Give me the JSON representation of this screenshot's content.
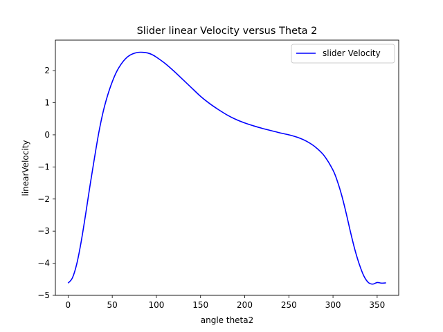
{
  "chart_data": {
    "type": "line",
    "title": "Slider linear Velocity versus Theta 2",
    "xlabel": "angle theta2",
    "ylabel": "linearVelocity",
    "xlim": [
      -14.4,
      374.4
    ],
    "ylim": [
      -5.0,
      2.95
    ],
    "xticks": [
      0,
      50,
      100,
      150,
      200,
      250,
      300,
      350
    ],
    "xtick_labels": [
      "0",
      "50",
      "100",
      "150",
      "200",
      "250",
      "300",
      "350"
    ],
    "yticks": [
      -5,
      -4,
      -3,
      -2,
      -1,
      0,
      1,
      2
    ],
    "ytick_labels": [
      "−5",
      "−4",
      "−3",
      "−2",
      "−1",
      "0",
      "1",
      "2"
    ],
    "grid": false,
    "legend_position": "top-right",
    "series": [
      {
        "name": "slider Velocity",
        "color": "#0000ff",
        "x": [
          0,
          5,
          10,
          15,
          20,
          25,
          30,
          35,
          40,
          45,
          50,
          55,
          60,
          65,
          70,
          75,
          80,
          85,
          90,
          95,
          100,
          110,
          120,
          130,
          140,
          150,
          160,
          170,
          180,
          190,
          200,
          210,
          220,
          230,
          240,
          250,
          260,
          270,
          280,
          290,
          300,
          305,
          310,
          315,
          320,
          325,
          330,
          335,
          340,
          345,
          350,
          355,
          360
        ],
        "y": [
          -4.62,
          -4.45,
          -4.0,
          -3.3,
          -2.45,
          -1.55,
          -0.7,
          0.1,
          0.75,
          1.25,
          1.65,
          1.97,
          2.2,
          2.37,
          2.48,
          2.54,
          2.57,
          2.57,
          2.55,
          2.5,
          2.42,
          2.22,
          1.98,
          1.72,
          1.46,
          1.2,
          0.98,
          0.79,
          0.62,
          0.48,
          0.37,
          0.28,
          0.2,
          0.13,
          0.06,
          0.0,
          -0.08,
          -0.2,
          -0.38,
          -0.65,
          -1.1,
          -1.45,
          -1.9,
          -2.45,
          -3.05,
          -3.6,
          -4.05,
          -4.4,
          -4.6,
          -4.65,
          -4.6,
          -4.62,
          -4.61
        ]
      }
    ]
  }
}
